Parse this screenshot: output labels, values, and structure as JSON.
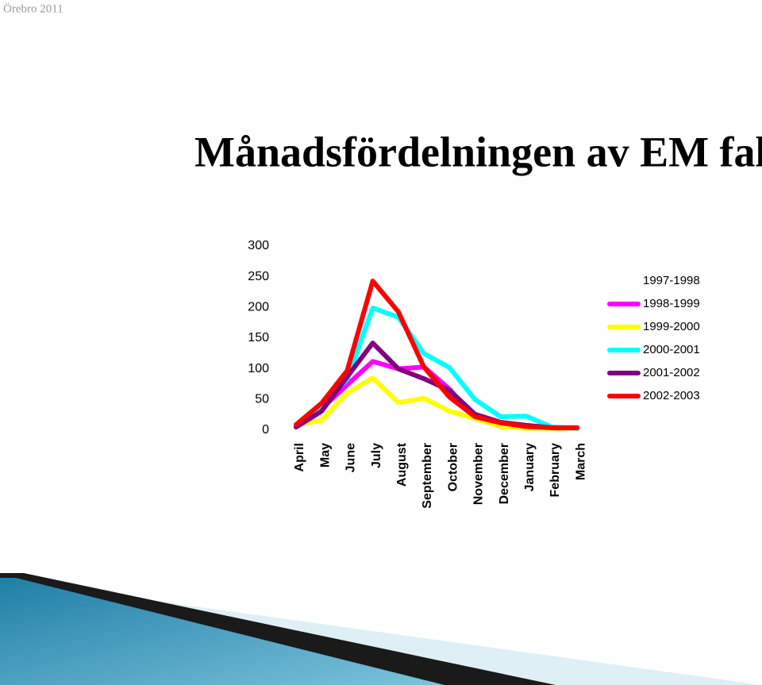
{
  "header": {
    "text": "Örebro 2011"
  },
  "chart_data": {
    "type": "line",
    "title": "Månadsfördelningen av EM fall",
    "categories": [
      "April",
      "May",
      "June",
      "July",
      "August",
      "September",
      "October",
      "November",
      "December",
      "January",
      "February",
      "March"
    ],
    "series": [
      {
        "name": "1997-1998",
        "color": "#ffffff",
        "values": [
          null,
          null,
          null,
          null,
          null,
          null,
          null,
          null,
          null,
          null,
          null,
          null
        ]
      },
      {
        "name": "1998-1999",
        "color": "#ff00ff",
        "values": [
          6,
          35,
          74,
          112,
          100,
          103,
          67,
          19,
          12,
          6,
          3,
          3
        ]
      },
      {
        "name": "1999-2000",
        "color": "#ffff00",
        "values": [
          9,
          16,
          61,
          85,
          45,
          52,
          31,
          19,
          6,
          3,
          3,
          3
        ]
      },
      {
        "name": "2000-2001",
        "color": "#00ffff",
        "values": [
          6,
          41,
          83,
          199,
          184,
          125,
          102,
          50,
          22,
          23,
          5,
          3
        ]
      },
      {
        "name": "2001-2002",
        "color": "#800080",
        "values": [
          5,
          31,
          87,
          142,
          100,
          84,
          65,
          26,
          13,
          8,
          4,
          4
        ]
      },
      {
        "name": "2002-2003",
        "color": "#ff0000",
        "values": [
          9,
          44,
          97,
          243,
          193,
          103,
          54,
          22,
          12,
          6,
          4,
          4
        ]
      }
    ],
    "ylim": [
      0,
      300
    ],
    "yticks": [
      0,
      50,
      100,
      150,
      200,
      250,
      300
    ],
    "grid": false,
    "legend": "right"
  }
}
